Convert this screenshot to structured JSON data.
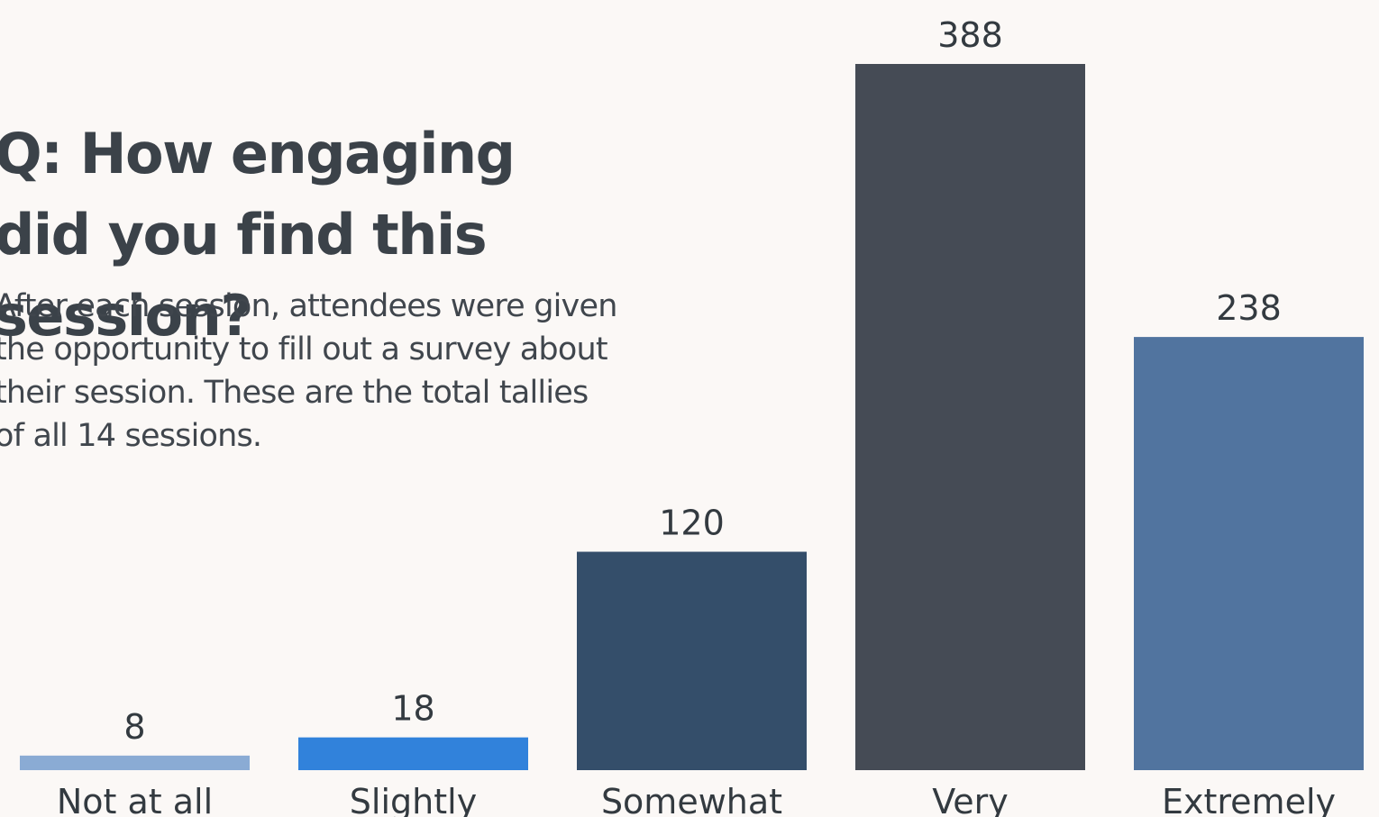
{
  "title": "Q: How engaging did you find this session?",
  "subtitle": "After each session, attendees were given the opportunity to fill out a survey about their session. These are the total tallies of all 14 sessions.",
  "chart_data": {
    "type": "bar",
    "categories": [
      "Not at all",
      "Slightly",
      "Somewhat",
      "Very",
      "Extremely"
    ],
    "values": [
      8,
      18,
      120,
      388,
      238
    ],
    "value_labels": [
      "8",
      "18",
      "120",
      "388",
      "238"
    ],
    "colors": [
      "#8aabd4",
      "#3182db",
      "#344e6a",
      "#454b55",
      "#51749f"
    ],
    "ylim": [
      0,
      388
    ],
    "grid": false,
    "legend": "none",
    "xlabel": "",
    "ylabel": ""
  }
}
